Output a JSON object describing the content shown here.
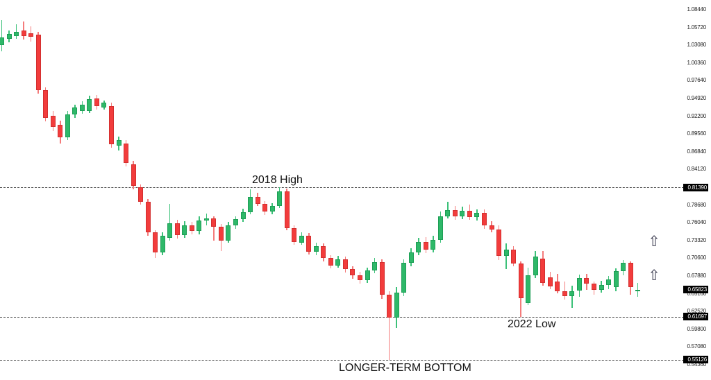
{
  "chart_data": {
    "type": "candlestick",
    "title": "",
    "xlabel": "",
    "ylabel": "",
    "ylim": [
      0.5436,
      1.0844
    ],
    "grid": "off",
    "legend": "none",
    "y_axis": {
      "ticks": [
        "1.08440",
        "1.05720",
        "1.03080",
        "1.00360",
        "0.97640",
        "0.94920",
        "0.92200",
        "0.89560",
        "0.86840",
        "0.84120",
        "0.78680",
        "0.76040",
        "0.73320",
        "0.70600",
        "0.67880",
        "0.65160",
        "0.62520",
        "0.59800",
        "0.57080",
        "0.54360"
      ],
      "tags": [
        {
          "label": "0.81390",
          "price": 0.8139
        },
        {
          "label": "0.65823",
          "price": 0.65823
        },
        {
          "label": "0.61697",
          "price": 0.61697
        },
        {
          "label": "0.55126",
          "price": 0.55126
        }
      ]
    },
    "key_levels": {
      "resistance_2018_high": 0.8139,
      "current_price": 0.65823,
      "support_2022_low": 0.61697,
      "longer_term_bottom": 0.55126
    },
    "dotted_lines": [
      0.8139,
      0.61697,
      0.55126
    ],
    "annotations": {
      "high_2018": {
        "text": "2018 High"
      },
      "low_2022": {
        "text": "2022 Low"
      },
      "bottom": {
        "text": "LONGER-TERM BOTTOM"
      }
    },
    "arrows": [
      {
        "glyph": "⇧",
        "price": 0.7305
      },
      {
        "glyph": "⇧",
        "price": 0.679
      }
    ],
    "candles_ohlc": [
      [
        1.031,
        1.0685,
        1.021,
        1.0425
      ],
      [
        1.04,
        1.053,
        1.035,
        1.048
      ],
      [
        1.0445,
        1.062,
        1.0405,
        1.0505
      ],
      [
        1.0525,
        1.066,
        1.039,
        1.044
      ],
      [
        1.049,
        1.059,
        1.036,
        1.043
      ],
      [
        1.046,
        1.0505,
        0.9565,
        0.962
      ],
      [
        0.962,
        0.966,
        0.914,
        0.9195
      ],
      [
        0.923,
        0.93,
        0.9,
        0.9055
      ],
      [
        0.909,
        0.9155,
        0.881,
        0.89
      ],
      [
        0.89,
        0.93,
        0.886,
        0.925
      ],
      [
        0.925,
        0.94,
        0.92,
        0.935
      ],
      [
        0.93,
        0.945,
        0.926,
        0.94
      ],
      [
        0.93,
        0.953,
        0.927,
        0.948
      ],
      [
        0.9495,
        0.955,
        0.932,
        0.937
      ],
      [
        0.9355,
        0.946,
        0.932,
        0.9425
      ],
      [
        0.9372,
        0.9425,
        0.874,
        0.879
      ],
      [
        0.8775,
        0.8915,
        0.87,
        0.886
      ],
      [
        0.881,
        0.886,
        0.8455,
        0.851
      ],
      [
        0.849,
        0.854,
        0.8105,
        0.816
      ],
      [
        0.814,
        0.818,
        0.788,
        0.792
      ],
      [
        0.792,
        0.796,
        0.74,
        0.745
      ],
      [
        0.745,
        0.749,
        0.706,
        0.715
      ],
      [
        0.715,
        0.745,
        0.71,
        0.74
      ],
      [
        0.737,
        0.789,
        0.733,
        0.759
      ],
      [
        0.759,
        0.764,
        0.736,
        0.741
      ],
      [
        0.741,
        0.762,
        0.737,
        0.756
      ],
      [
        0.756,
        0.761,
        0.742,
        0.747
      ],
      [
        0.747,
        0.77,
        0.742,
        0.763
      ],
      [
        0.763,
        0.774,
        0.756,
        0.766
      ],
      [
        0.766,
        0.77,
        0.733,
        0.754
      ],
      [
        0.754,
        0.758,
        0.717,
        0.733
      ],
      [
        0.733,
        0.761,
        0.729,
        0.756
      ],
      [
        0.756,
        0.77,
        0.751,
        0.765
      ],
      [
        0.765,
        0.781,
        0.761,
        0.776
      ],
      [
        0.776,
        0.811,
        0.773,
        0.799
      ],
      [
        0.799,
        0.806,
        0.785,
        0.789
      ],
      [
        0.789,
        0.793,
        0.772,
        0.777
      ],
      [
        0.777,
        0.79,
        0.773,
        0.785
      ],
      [
        0.785,
        0.8136,
        0.782,
        0.808
      ],
      [
        0.808,
        0.812,
        0.748,
        0.752
      ],
      [
        0.752,
        0.756,
        0.726,
        0.73
      ],
      [
        0.73,
        0.745,
        0.726,
        0.74
      ],
      [
        0.74,
        0.744,
        0.712,
        0.716
      ],
      [
        0.716,
        0.73,
        0.711,
        0.724
      ],
      [
        0.724,
        0.728,
        0.701,
        0.706
      ],
      [
        0.706,
        0.711,
        0.69,
        0.695
      ],
      [
        0.695,
        0.709,
        0.691,
        0.704
      ],
      [
        0.704,
        0.708,
        0.684,
        0.689
      ],
      [
        0.689,
        0.694,
        0.675,
        0.68
      ],
      [
        0.68,
        0.685,
        0.667,
        0.672
      ],
      [
        0.672,
        0.692,
        0.668,
        0.687
      ],
      [
        0.687,
        0.706,
        0.683,
        0.7
      ],
      [
        0.7,
        0.704,
        0.644,
        0.65
      ],
      [
        0.65,
        0.656,
        0.5513,
        0.615
      ],
      [
        0.615,
        0.662,
        0.6,
        0.653
      ],
      [
        0.653,
        0.704,
        0.648,
        0.699
      ],
      [
        0.699,
        0.721,
        0.694,
        0.715
      ],
      [
        0.715,
        0.737,
        0.71,
        0.731
      ],
      [
        0.731,
        0.738,
        0.714,
        0.719
      ],
      [
        0.719,
        0.74,
        0.715,
        0.734
      ],
      [
        0.734,
        0.777,
        0.73,
        0.77
      ],
      [
        0.77,
        0.792,
        0.766,
        0.779
      ],
      [
        0.779,
        0.785,
        0.764,
        0.77
      ],
      [
        0.77,
        0.784,
        0.765,
        0.778
      ],
      [
        0.778,
        0.788,
        0.764,
        0.769
      ],
      [
        0.769,
        0.78,
        0.763,
        0.775
      ],
      [
        0.775,
        0.78,
        0.751,
        0.756
      ],
      [
        0.756,
        0.762,
        0.745,
        0.75
      ],
      [
        0.75,
        0.756,
        0.703,
        0.709
      ],
      [
        0.709,
        0.729,
        0.689,
        0.719
      ],
      [
        0.719,
        0.724,
        0.693,
        0.698
      ],
      [
        0.698,
        0.701,
        0.617,
        0.645
      ],
      [
        0.638,
        0.691,
        0.634,
        0.68
      ],
      [
        0.68,
        0.717,
        0.676,
        0.708
      ],
      [
        0.705,
        0.717,
        0.664,
        0.668
      ],
      [
        0.677,
        0.685,
        0.659,
        0.663
      ],
      [
        0.67,
        0.682,
        0.652,
        0.656
      ],
      [
        0.656,
        0.67,
        0.643,
        0.648
      ],
      [
        0.648,
        0.664,
        0.63,
        0.656
      ],
      [
        0.656,
        0.681,
        0.647,
        0.676
      ],
      [
        0.676,
        0.682,
        0.658,
        0.667
      ],
      [
        0.667,
        0.67,
        0.65,
        0.658
      ],
      [
        0.658,
        0.671,
        0.653,
        0.665
      ],
      [
        0.665,
        0.679,
        0.659,
        0.674
      ],
      [
        0.662,
        0.69,
        0.656,
        0.686
      ],
      [
        0.686,
        0.703,
        0.68,
        0.699
      ],
      [
        0.699,
        0.701,
        0.65,
        0.662
      ],
      [
        0.6565,
        0.668,
        0.647,
        0.6582
      ]
    ]
  },
  "style": {
    "up_fill": "#2eb869",
    "up_border": "#1d9e55",
    "up_wick": "#3cc179",
    "down_fill": "#f23c3c",
    "down_border": "#d32f2f",
    "down_wick": "#f47b7b",
    "line_color": "#4d4d4d",
    "tag_bg": "#000000",
    "tag_text": "#ffffff",
    "tick_text": "#1a1a1a"
  }
}
